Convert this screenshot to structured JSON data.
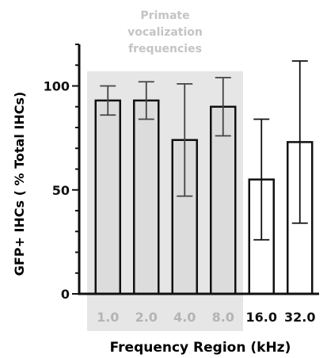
{
  "chart_data": {
    "type": "bar",
    "ylabel": "GFP+ IHCs ( % Total IHCs)",
    "xlabel": "Frequency Region (kHz)",
    "ylim": [
      0,
      120
    ],
    "yticks": [
      0,
      50,
      100
    ],
    "categories": [
      "1.0",
      "2.0",
      "4.0",
      "8.0",
      "16.0",
      "32.0"
    ],
    "values": [
      93,
      93,
      74,
      90,
      55,
      73
    ],
    "error_low": [
      86,
      84,
      47,
      76,
      26,
      34
    ],
    "error_high": [
      100,
      102,
      101,
      104,
      84,
      112
    ],
    "highlight": {
      "label_lines": [
        "Primate",
        "vocalization",
        "frequencies"
      ],
      "categories": [
        "1.0",
        "2.0",
        "4.0",
        "8.0"
      ]
    },
    "colors": {
      "bar_fill": "#dcdcdc",
      "highlight_fill": "#e6e6e6",
      "highlight_text": "#c4c4c4",
      "highlight_ticks": "#b4b4b4",
      "ink": "#111111"
    }
  }
}
